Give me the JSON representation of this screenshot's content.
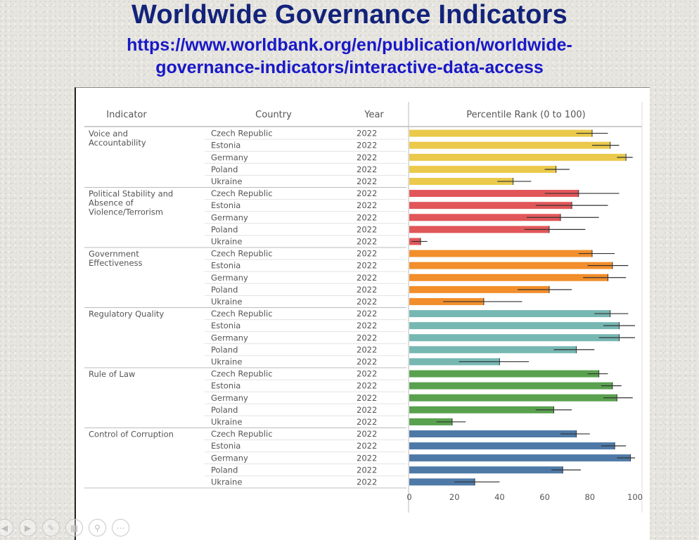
{
  "slide": {
    "title": "Worldwide Governance Indicators",
    "url_line1": "https://www.worldbank.org/en/publication/worldwide-",
    "url_line2": "governance-indicators/interactive-data-access"
  },
  "colors": {
    "voice": "#eac94b",
    "political": "#e15759",
    "government": "#f28e2b",
    "regulatory": "#76b7b2",
    "rule": "#59a14f",
    "corruption": "#4e79a7"
  },
  "nav_icons": [
    "back-icon",
    "forward-icon",
    "pen-icon",
    "slides-icon",
    "zoom-icon",
    "more-icon"
  ],
  "chart_data": {
    "type": "bar",
    "orientation": "horizontal",
    "headers": [
      "Indicator",
      "Country",
      "Year",
      "Percentile Rank (0 to 100)"
    ],
    "xlim": [
      0,
      100
    ],
    "xticks": [
      0,
      20,
      40,
      60,
      80,
      100
    ],
    "grid": false,
    "error_bars": true,
    "groups": [
      {
        "indicator": "Voice and Accountability",
        "color_key": "voice",
        "rows": [
          {
            "country": "Czech Republic",
            "year": "2022",
            "value": 81,
            "lo": 74,
            "hi": 88
          },
          {
            "country": "Estonia",
            "year": "2022",
            "value": 89,
            "lo": 81,
            "hi": 93
          },
          {
            "country": "Germany",
            "year": "2022",
            "value": 96,
            "lo": 92,
            "hi": 99
          },
          {
            "country": "Poland",
            "year": "2022",
            "value": 65,
            "lo": 60,
            "hi": 71
          },
          {
            "country": "Ukraine",
            "year": "2022",
            "value": 46,
            "lo": 39,
            "hi": 54
          }
        ]
      },
      {
        "indicator": "Political Stability and Absence of Violence/Terrorism",
        "color_key": "political",
        "rows": [
          {
            "country": "Czech Republic",
            "year": "2022",
            "value": 75,
            "lo": 60,
            "hi": 93
          },
          {
            "country": "Estonia",
            "year": "2022",
            "value": 72,
            "lo": 56,
            "hi": 88
          },
          {
            "country": "Germany",
            "year": "2022",
            "value": 67,
            "lo": 52,
            "hi": 84
          },
          {
            "country": "Poland",
            "year": "2022",
            "value": 62,
            "lo": 51,
            "hi": 78
          },
          {
            "country": "Ukraine",
            "year": "2022",
            "value": 5,
            "lo": 1,
            "hi": 8
          }
        ]
      },
      {
        "indicator": "Government Effectiveness",
        "color_key": "government",
        "rows": [
          {
            "country": "Czech Republic",
            "year": "2022",
            "value": 81,
            "lo": 75,
            "hi": 91
          },
          {
            "country": "Estonia",
            "year": "2022",
            "value": 90,
            "lo": 79,
            "hi": 97
          },
          {
            "country": "Germany",
            "year": "2022",
            "value": 88,
            "lo": 77,
            "hi": 96
          },
          {
            "country": "Poland",
            "year": "2022",
            "value": 62,
            "lo": 48,
            "hi": 72
          },
          {
            "country": "Ukraine",
            "year": "2022",
            "value": 33,
            "lo": 15,
            "hi": 50
          }
        ]
      },
      {
        "indicator": "Regulatory Quality",
        "color_key": "regulatory",
        "rows": [
          {
            "country": "Czech Republic",
            "year": "2022",
            "value": 89,
            "lo": 82,
            "hi": 97
          },
          {
            "country": "Estonia",
            "year": "2022",
            "value": 93,
            "lo": 86,
            "hi": 100
          },
          {
            "country": "Germany",
            "year": "2022",
            "value": 93,
            "lo": 84,
            "hi": 100
          },
          {
            "country": "Poland",
            "year": "2022",
            "value": 74,
            "lo": 64,
            "hi": 82
          },
          {
            "country": "Ukraine",
            "year": "2022",
            "value": 40,
            "lo": 22,
            "hi": 53
          }
        ]
      },
      {
        "indicator": "Rule of Law",
        "color_key": "rule",
        "rows": [
          {
            "country": "Czech Republic",
            "year": "2022",
            "value": 84,
            "lo": 79,
            "hi": 88
          },
          {
            "country": "Estonia",
            "year": "2022",
            "value": 90,
            "lo": 85,
            "hi": 94
          },
          {
            "country": "Germany",
            "year": "2022",
            "value": 92,
            "lo": 86,
            "hi": 99
          },
          {
            "country": "Poland",
            "year": "2022",
            "value": 64,
            "lo": 56,
            "hi": 72
          },
          {
            "country": "Ukraine",
            "year": "2022",
            "value": 19,
            "lo": 12,
            "hi": 25
          }
        ]
      },
      {
        "indicator": "Control of Corruption",
        "color_key": "corruption",
        "rows": [
          {
            "country": "Czech Republic",
            "year": "2022",
            "value": 74,
            "lo": 67,
            "hi": 80
          },
          {
            "country": "Estonia",
            "year": "2022",
            "value": 91,
            "lo": 85,
            "hi": 96
          },
          {
            "country": "Germany",
            "year": "2022",
            "value": 98,
            "lo": 92,
            "hi": 100
          },
          {
            "country": "Poland",
            "year": "2022",
            "value": 68,
            "lo": 63,
            "hi": 76
          },
          {
            "country": "Ukraine",
            "year": "2022",
            "value": 29,
            "lo": 20,
            "hi": 40
          }
        ]
      }
    ]
  }
}
